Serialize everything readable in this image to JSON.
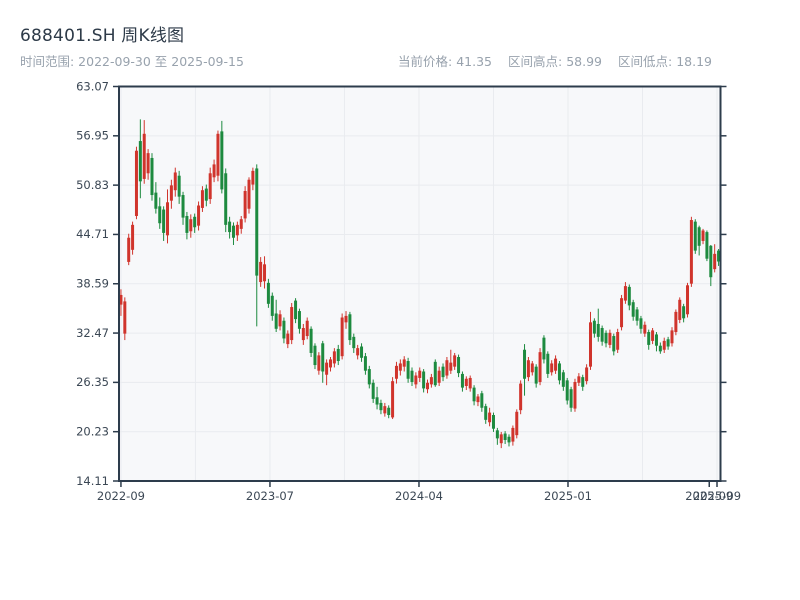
{
  "header": {
    "title": "688401.SH 周K线图",
    "subtitle": "时间范围: 2022-09-30 至 2025-09-15",
    "stats": [
      {
        "label": "当前价格",
        "value": "41.35"
      },
      {
        "label": "区间高点",
        "value": "58.99"
      },
      {
        "label": "区间低点",
        "value": "18.19"
      }
    ]
  },
  "chart_data": {
    "type": "candlestick",
    "title": "688401.SH 周K线图",
    "symbol": "688401.SH",
    "frequency": "weekly",
    "date_start": "2022-09-30",
    "date_end": "2025-09-15",
    "interval_days": 7,
    "current_price": 41.35,
    "range_high": 58.99,
    "range_low": 18.19,
    "convention": "red = up (close > open), green = down",
    "up_color": "#d0342c",
    "down_color": "#1d8a3f",
    "plot_bg": "#f7f8fa",
    "grid_color": "#e9ebef",
    "spine_color": "#2d3c4c",
    "tick_label_color": "#3b4754",
    "grid": true,
    "ylim": [
      14.11,
      63.07
    ],
    "y_ticks": [
      63.07,
      56.95,
      50.83,
      44.71,
      38.59,
      32.47,
      26.35,
      20.23,
      14.11
    ],
    "x_ticks": [
      {
        "week": 0,
        "label": "2022-09"
      },
      {
        "week": 38.4,
        "label": "2023-07"
      },
      {
        "week": 76.8,
        "label": "2024-04"
      },
      {
        "week": 115.2,
        "label": "2025-01"
      },
      {
        "week": 151.6,
        "label": "2025-09"
      },
      {
        "week": 153.6,
        "label": "2025-09"
      }
    ],
    "x_gridline_weeks": [
      0,
      19.2,
      38.4,
      57.6,
      76.8,
      96.0,
      115.2,
      134.4,
      153.6
    ],
    "candles_format": [
      "open",
      "high",
      "low",
      "close"
    ],
    "candles": [
      [
        36.0,
        37.9,
        34.6,
        37.2
      ],
      [
        32.4,
        36.9,
        31.6,
        36.4
      ],
      [
        41.3,
        44.8,
        40.9,
        44.3
      ],
      [
        42.8,
        46.3,
        42.2,
        45.9
      ],
      [
        47.0,
        55.6,
        46.6,
        55.1
      ],
      [
        56.3,
        58.99,
        49.2,
        51.3
      ],
      [
        51.6,
        58.9,
        51.0,
        57.2
      ],
      [
        52.3,
        55.3,
        51.5,
        54.8
      ],
      [
        54.2,
        54.8,
        48.9,
        49.6
      ],
      [
        49.9,
        51.2,
        47.3,
        47.9
      ],
      [
        48.2,
        49.3,
        45.4,
        46.1
      ],
      [
        47.8,
        48.2,
        43.9,
        44.9
      ],
      [
        44.6,
        50.3,
        43.6,
        48.7
      ],
      [
        48.9,
        51.5,
        47.9,
        50.8
      ],
      [
        50.2,
        53.0,
        49.4,
        52.4
      ],
      [
        52.0,
        52.6,
        48.5,
        49.4
      ],
      [
        49.6,
        50.0,
        45.9,
        46.8
      ],
      [
        47.0,
        47.5,
        44.1,
        44.9
      ],
      [
        45.1,
        47.2,
        44.3,
        46.6
      ],
      [
        46.9,
        47.3,
        44.9,
        45.6
      ],
      [
        45.8,
        48.8,
        45.2,
        48.3
      ],
      [
        48.0,
        50.7,
        47.5,
        50.2
      ],
      [
        50.4,
        50.9,
        48.2,
        48.9
      ],
      [
        49.1,
        53.0,
        48.5,
        52.3
      ],
      [
        51.8,
        54.0,
        51.2,
        53.4
      ],
      [
        52.0,
        57.6,
        51.3,
        57.2
      ],
      [
        57.5,
        58.8,
        49.8,
        50.3
      ],
      [
        52.3,
        52.9,
        45.0,
        45.9
      ],
      [
        46.3,
        46.9,
        44.2,
        45.0
      ],
      [
        45.8,
        46.2,
        43.4,
        44.3
      ],
      [
        44.6,
        46.3,
        43.9,
        45.9
      ],
      [
        45.4,
        47.0,
        44.8,
        46.6
      ],
      [
        46.7,
        50.7,
        46.2,
        50.1
      ],
      [
        47.9,
        51.8,
        47.3,
        51.5
      ],
      [
        50.9,
        53.0,
        50.2,
        52.6
      ],
      [
        52.9,
        53.4,
        33.3,
        39.6
      ],
      [
        38.8,
        41.9,
        38.2,
        41.3
      ],
      [
        38.9,
        42.0,
        38.0,
        41.0
      ],
      [
        38.7,
        39.2,
        35.6,
        36.1
      ],
      [
        37.1,
        37.5,
        34.0,
        34.6
      ],
      [
        34.9,
        36.6,
        32.6,
        33.0
      ],
      [
        33.3,
        35.3,
        32.8,
        34.8
      ],
      [
        34.0,
        34.4,
        31.2,
        31.8
      ],
      [
        31.1,
        32.8,
        30.6,
        32.4
      ],
      [
        31.6,
        36.2,
        31.1,
        35.7
      ],
      [
        36.5,
        36.8,
        33.7,
        34.2
      ],
      [
        35.2,
        35.5,
        32.4,
        33.0
      ],
      [
        31.6,
        33.6,
        31.0,
        33.1
      ],
      [
        32.1,
        34.4,
        31.7,
        34.0
      ],
      [
        33.0,
        33.3,
        29.5,
        30.0
      ],
      [
        30.9,
        31.2,
        28.0,
        28.5
      ],
      [
        27.8,
        30.1,
        27.3,
        29.7
      ],
      [
        31.2,
        31.5,
        26.3,
        27.7
      ],
      [
        27.3,
        29.2,
        26.0,
        28.8
      ],
      [
        28.2,
        29.5,
        27.7,
        29.2
      ],
      [
        28.7,
        30.6,
        28.2,
        30.2
      ],
      [
        30.5,
        31.0,
        28.5,
        29.0
      ],
      [
        29.6,
        34.9,
        29.2,
        34.4
      ],
      [
        33.8,
        35.2,
        33.0,
        34.6
      ],
      [
        34.8,
        35.1,
        31.0,
        31.6
      ],
      [
        32.0,
        32.4,
        30.0,
        30.6
      ],
      [
        29.7,
        31.0,
        29.2,
        30.6
      ],
      [
        30.8,
        31.2,
        28.9,
        29.4
      ],
      [
        29.6,
        30.0,
        27.3,
        27.8
      ],
      [
        28.0,
        28.4,
        25.6,
        26.1
      ],
      [
        26.3,
        26.7,
        23.8,
        24.3
      ],
      [
        24.5,
        25.8,
        23.0,
        23.6
      ],
      [
        23.8,
        24.2,
        22.4,
        22.9
      ],
      [
        22.5,
        23.8,
        22.1,
        23.4
      ],
      [
        23.2,
        23.5,
        21.9,
        22.3
      ],
      [
        22.0,
        27.0,
        21.8,
        26.5
      ],
      [
        26.8,
        28.9,
        26.2,
        28.4
      ],
      [
        27.8,
        29.2,
        27.2,
        28.7
      ],
      [
        28.3,
        29.6,
        27.7,
        29.2
      ],
      [
        29.0,
        29.4,
        26.3,
        26.8
      ],
      [
        27.8,
        28.2,
        25.9,
        26.4
      ],
      [
        26.1,
        27.6,
        25.6,
        27.2
      ],
      [
        26.9,
        28.2,
        26.4,
        27.8
      ],
      [
        27.7,
        28.0,
        25.1,
        25.6
      ],
      [
        25.5,
        26.7,
        25.0,
        26.3
      ],
      [
        26.1,
        27.4,
        25.7,
        27.0
      ],
      [
        28.9,
        29.2,
        25.8,
        26.0
      ],
      [
        26.3,
        28.3,
        25.9,
        27.8
      ],
      [
        28.3,
        28.7,
        26.5,
        27.0
      ],
      [
        27.2,
        29.5,
        26.8,
        29.1
      ],
      [
        27.8,
        30.4,
        27.4,
        28.8
      ],
      [
        28.3,
        30.0,
        27.9,
        29.7
      ],
      [
        29.5,
        29.8,
        27.0,
        27.5
      ],
      [
        27.4,
        27.7,
        25.2,
        25.7
      ],
      [
        25.9,
        27.1,
        25.4,
        26.8
      ],
      [
        25.6,
        27.2,
        25.2,
        26.9
      ],
      [
        25.7,
        26.0,
        23.5,
        24.0
      ],
      [
        23.9,
        24.9,
        23.4,
        24.6
      ],
      [
        25.0,
        25.3,
        22.7,
        23.2
      ],
      [
        23.4,
        23.7,
        21.2,
        21.7
      ],
      [
        21.4,
        23.2,
        20.9,
        22.6
      ],
      [
        22.3,
        22.6,
        20.2,
        20.6
      ],
      [
        20.4,
        20.7,
        18.6,
        19.4
      ],
      [
        18.8,
        20.2,
        18.19,
        19.9
      ],
      [
        20.0,
        20.3,
        18.7,
        19.2
      ],
      [
        19.6,
        19.9,
        18.4,
        18.9
      ],
      [
        19.0,
        21.0,
        18.5,
        20.7
      ],
      [
        19.8,
        23.0,
        19.4,
        22.7
      ],
      [
        22.9,
        26.6,
        22.4,
        26.2
      ],
      [
        30.4,
        31.1,
        24.7,
        26.8
      ],
      [
        27.0,
        29.5,
        26.5,
        29.1
      ],
      [
        27.6,
        29.0,
        27.2,
        28.7
      ],
      [
        28.3,
        28.6,
        25.7,
        26.2
      ],
      [
        26.4,
        30.6,
        26.0,
        30.1
      ],
      [
        31.9,
        32.2,
        28.7,
        29.2
      ],
      [
        29.9,
        30.2,
        26.9,
        27.4
      ],
      [
        27.6,
        29.1,
        27.2,
        28.7
      ],
      [
        27.8,
        29.7,
        27.4,
        29.3
      ],
      [
        28.7,
        29.0,
        26.1,
        26.6
      ],
      [
        27.6,
        27.9,
        25.3,
        25.8
      ],
      [
        26.6,
        26.9,
        23.6,
        24.1
      ],
      [
        25.5,
        25.8,
        22.7,
        23.2
      ],
      [
        23.1,
        26.8,
        22.7,
        26.4
      ],
      [
        26.3,
        27.5,
        25.9,
        27.1
      ],
      [
        27.0,
        27.3,
        25.3,
        25.8
      ],
      [
        26.5,
        28.6,
        26.1,
        28.2
      ],
      [
        28.3,
        35.1,
        27.9,
        33.8
      ],
      [
        34.0,
        34.3,
        31.9,
        32.4
      ],
      [
        33.6,
        35.5,
        31.4,
        32.0
      ],
      [
        33.1,
        33.4,
        30.9,
        31.4
      ],
      [
        32.5,
        32.8,
        30.7,
        31.2
      ],
      [
        31.0,
        32.9,
        30.6,
        32.5
      ],
      [
        32.1,
        32.4,
        29.7,
        30.2
      ],
      [
        30.4,
        33.0,
        30.0,
        32.6
      ],
      [
        33.2,
        37.2,
        32.8,
        36.8
      ],
      [
        36.5,
        38.8,
        36.1,
        38.3
      ],
      [
        38.2,
        38.5,
        35.3,
        35.9
      ],
      [
        36.3,
        36.6,
        34.0,
        34.5
      ],
      [
        35.4,
        35.7,
        33.4,
        34.0
      ],
      [
        34.3,
        34.6,
        32.4,
        33.0
      ],
      [
        32.4,
        33.9,
        32.0,
        33.5
      ],
      [
        32.6,
        32.9,
        30.4,
        31.0
      ],
      [
        31.5,
        33.1,
        31.1,
        32.8
      ],
      [
        32.3,
        32.6,
        30.2,
        30.9
      ],
      [
        30.9,
        31.3,
        29.9,
        30.2
      ],
      [
        30.4,
        31.9,
        30.0,
        31.5
      ],
      [
        31.7,
        32.0,
        30.4,
        30.8
      ],
      [
        31.2,
        33.2,
        30.8,
        32.8
      ],
      [
        32.6,
        35.4,
        32.2,
        35.1
      ],
      [
        34.1,
        36.9,
        33.7,
        36.6
      ],
      [
        35.8,
        36.1,
        33.8,
        34.3
      ],
      [
        34.8,
        38.7,
        34.4,
        38.4
      ],
      [
        38.6,
        46.9,
        38.2,
        46.5
      ],
      [
        46.3,
        46.6,
        42.3,
        42.7
      ],
      [
        45.6,
        45.8,
        42.1,
        43.3
      ],
      [
        43.9,
        45.4,
        43.5,
        45.2
      ],
      [
        45.0,
        45.2,
        41.4,
        41.7
      ],
      [
        43.3,
        43.4,
        38.3,
        39.4
      ],
      [
        40.4,
        43.5,
        40.0,
        42.3
      ],
      [
        42.7,
        42.9,
        40.8,
        41.35
      ]
    ]
  },
  "layout_note": "plot area left 119, top 86.5, right 720.5, bottom 481"
}
